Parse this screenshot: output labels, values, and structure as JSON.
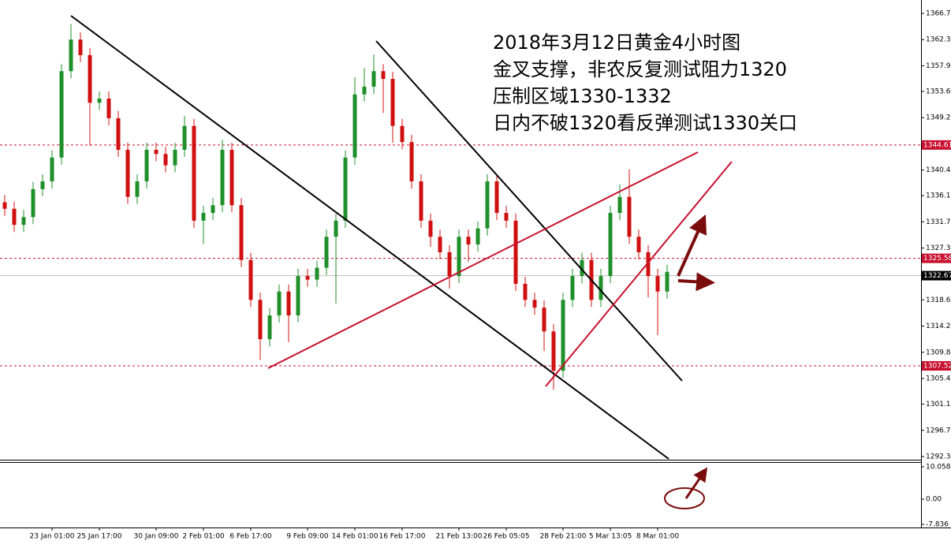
{
  "chart_data": {
    "type": "candlestick",
    "annotations": [
      "2018年3月12日黄金4小时图",
      "金叉支撑，非农反复测试阻力1320",
      "压制区域1330-1332",
      "日内不破1320看反弹测试1330关口"
    ],
    "categories": [
      null,
      null,
      null,
      null,
      null,
      "23 Jan 01:00",
      null,
      null,
      null,
      null,
      "25 Jan 17:00",
      null,
      null,
      null,
      null,
      null,
      "30 Jan 09:00",
      null,
      null,
      null,
      null,
      "2 Feb 01:00",
      null,
      null,
      null,
      null,
      "6 Feb 17:00",
      null,
      null,
      null,
      null,
      null,
      "9 Feb 09:00",
      null,
      null,
      null,
      null,
      "14 Feb 01:00",
      null,
      null,
      null,
      null,
      "16 Feb 17:00",
      null,
      null,
      null,
      null,
      null,
      "21 Feb 13:00",
      null,
      null,
      null,
      null,
      "26 Feb 05:05",
      null,
      null,
      null,
      null,
      null,
      "28 Feb 21:00",
      null,
      null,
      null,
      null,
      "5 Mar 13:05",
      null,
      null,
      null,
      null,
      "8 Mar 01:00",
      null
    ],
    "open": [
      1335.0,
      1333.9,
      1331.2,
      1332.5,
      1337.2,
      1338.5,
      1342.5,
      1357.0,
      1362.3,
      1359.7,
      1351.7,
      1352.4,
      1349.1,
      1343.8,
      1335.9,
      1338.5,
      1343.8,
      1343.1,
      1341.2,
      1343.8,
      1347.8,
      1331.9,
      1333.2,
      1334.5,
      1343.8,
      1334.5,
      1325.3,
      1318.6,
      1312.0,
      1316.0,
      1320.0,
      1316.0,
      1322.6,
      1322.0,
      1324.0,
      1329.2,
      1331.9,
      1342.5,
      1353.1,
      1354.4,
      1357.0,
      1355.7,
      1347.8,
      1345.1,
      1338.5,
      1331.9,
      1329.2,
      1326.6,
      1322.6,
      1329.2,
      1327.9,
      1330.6,
      1338.5,
      1333.2,
      1331.9,
      1321.3,
      1318.6,
      1317.3,
      1313.3,
      1306.7,
      1318.6,
      1322.6,
      1325.3,
      1318.6,
      1322.6,
      1333.2,
      1335.9,
      1329.2,
      1326.6,
      1322.6,
      1320.0
    ],
    "high": [
      1336.2,
      1335.1,
      1333.7,
      1338.4,
      1339.7,
      1343.7,
      1358.2,
      1364.9,
      1363.5,
      1360.9,
      1353.6,
      1353.6,
      1350.3,
      1345.0,
      1339.7,
      1345.0,
      1345.0,
      1344.3,
      1345.0,
      1349.5,
      1349.0,
      1334.4,
      1335.7,
      1345.5,
      1345.0,
      1335.7,
      1326.5,
      1319.8,
      1317.2,
      1321.2,
      1321.2,
      1323.8,
      1323.8,
      1325.2,
      1330.4,
      1333.1,
      1343.7,
      1356.0,
      1357.5,
      1359.8,
      1358.2,
      1356.9,
      1349.0,
      1346.3,
      1339.7,
      1333.1,
      1330.4,
      1327.8,
      1330.4,
      1330.4,
      1331.8,
      1339.7,
      1339.7,
      1334.4,
      1333.1,
      1322.5,
      1319.8,
      1318.5,
      1314.5,
      1319.8,
      1323.8,
      1326.5,
      1326.5,
      1323.8,
      1334.4,
      1338.0,
      1340.5,
      1330.4,
      1327.8,
      1323.8,
      1324.5
    ],
    "low": [
      1332.7,
      1330.0,
      1330.0,
      1331.3,
      1336.0,
      1337.3,
      1341.3,
      1355.8,
      1358.5,
      1344.5,
      1350.5,
      1347.9,
      1342.6,
      1334.7,
      1334.7,
      1337.3,
      1341.9,
      1340.0,
      1340.0,
      1342.6,
      1330.7,
      1328.0,
      1332.0,
      1333.3,
      1333.3,
      1324.1,
      1317.4,
      1308.5,
      1310.8,
      1314.8,
      1311.5,
      1314.8,
      1320.8,
      1320.8,
      1322.8,
      1318.0,
      1330.7,
      1341.3,
      1351.9,
      1353.2,
      1350.0,
      1345.0,
      1343.9,
      1337.3,
      1330.7,
      1327.5,
      1325.4,
      1320.5,
      1321.4,
      1325.0,
      1326.7,
      1329.4,
      1332.0,
      1330.7,
      1320.1,
      1317.4,
      1316.1,
      1310.0,
      1303.5,
      1305.5,
      1317.4,
      1321.4,
      1317.4,
      1317.4,
      1321.4,
      1332.0,
      1328.0,
      1325.4,
      1319.0,
      1312.7,
      1318.8
    ],
    "close": [
      1333.9,
      1331.2,
      1332.5,
      1337.2,
      1338.5,
      1342.5,
      1357.0,
      1362.3,
      1359.7,
      1351.7,
      1352.4,
      1349.1,
      1343.8,
      1335.9,
      1338.5,
      1343.8,
      1343.1,
      1341.2,
      1343.8,
      1347.8,
      1331.9,
      1333.2,
      1334.5,
      1343.8,
      1334.5,
      1325.3,
      1318.6,
      1312.0,
      1316.0,
      1320.0,
      1316.0,
      1322.6,
      1322.0,
      1324.0,
      1329.2,
      1331.9,
      1342.5,
      1353.1,
      1354.4,
      1357.0,
      1355.7,
      1347.8,
      1345.1,
      1338.5,
      1331.9,
      1329.2,
      1326.6,
      1322.6,
      1329.2,
      1327.9,
      1330.6,
      1338.5,
      1333.2,
      1331.9,
      1321.3,
      1318.6,
      1317.3,
      1313.3,
      1306.7,
      1318.6,
      1322.6,
      1325.3,
      1318.6,
      1322.6,
      1333.2,
      1335.9,
      1329.2,
      1326.6,
      1322.6,
      1320.0,
      1323.3
    ],
    "up_color": "#1f8f2a",
    "down_color": "#d01010",
    "ylim": [
      1291.77,
      1368.95
    ],
    "yticks": [
      {
        "value": 1366.7,
        "label": "1366.70"
      },
      {
        "value": 1362.3,
        "label": "1362.30"
      },
      {
        "value": 1357.9,
        "label": "1357.90"
      },
      {
        "value": 1353.6,
        "label": "1353.60"
      },
      {
        "value": 1349.2,
        "label": "1349.20"
      },
      {
        "value": 1340.4,
        "label": "1340.40"
      },
      {
        "value": 1336.1,
        "label": "1336.10"
      },
      {
        "value": 1331.7,
        "label": "1331.70"
      },
      {
        "value": 1327.3,
        "label": "1327.30"
      },
      {
        "value": 1318.6,
        "label": "1318.60"
      },
      {
        "value": 1314.2,
        "label": "1314.20"
      },
      {
        "value": 1309.8,
        "label": "1309.80"
      },
      {
        "value": 1305.4,
        "label": "1305.40"
      },
      {
        "value": 1301.1,
        "label": "1301.10"
      },
      {
        "value": 1296.7,
        "label": "1296.70"
      },
      {
        "value": 1292.3,
        "label": "1292.30"
      }
    ],
    "level_lines": [
      1344.61,
      1325.58,
      1307.52
    ],
    "level_color": "#c8102e",
    "current_price": 1322.67,
    "indicator": {
      "ylim": [
        -8.82,
        11.28
      ],
      "yticks": [
        10.058,
        {
          "value": 0,
          "label": "0.00"
        },
        -7.836
      ]
    }
  }
}
